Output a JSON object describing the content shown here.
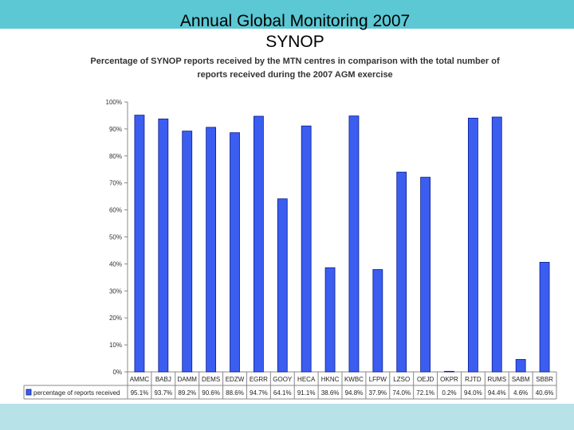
{
  "slide": {
    "title_line1": "Annual Global Monitoring 2007",
    "title_line2": "SYNOP"
  },
  "colors": {
    "header_band": "#5bc8d4",
    "footer_band": "#b7e3e8",
    "bar_fill": "#3b5ef0",
    "bar_stroke": "#0a1a8c"
  },
  "chart_data": {
    "type": "bar",
    "title": "Percentage of SYNOP reports received by the MTN centres in comparison with the total number of reports received during the 2007 AGM exercise",
    "title_lines": [
      "Percentage of SYNOP reports received by the MTN centres in comparison with the total number of",
      "reports received during the 2007 AGM exercise"
    ],
    "categories": [
      "AMMC",
      "BABJ",
      "DAMM",
      "DEMS",
      "EDZW",
      "EGRR",
      "GOOY",
      "HECA",
      "HKNC",
      "KWBC",
      "LFPW",
      "LZSO",
      "OEJD",
      "OKPR",
      "RJTD",
      "RUMS",
      "SABM",
      "SBBR"
    ],
    "series": [
      {
        "name": "percentage of reports received",
        "values": [
          95.1,
          93.7,
          89.2,
          90.6,
          88.6,
          94.7,
          64.1,
          91.1,
          38.6,
          94.8,
          37.9,
          74.0,
          72.1,
          0.2,
          94.0,
          94.4,
          4.6,
          40.6
        ],
        "labels": [
          "95.1%",
          "93.7%",
          "89.2%",
          "90.6%",
          "88.6%",
          "94.7%",
          "64.1%",
          "91.1%",
          "38.6%",
          "94.8%",
          "37.9%",
          "74.0%",
          "72.1%",
          "0.2%",
          "94.0%",
          "94.4%",
          "4.6%",
          "40.6%"
        ]
      }
    ],
    "ylim": [
      0,
      100
    ],
    "yticks": [
      "0%",
      "10%",
      "20%",
      "30%",
      "40%",
      "50%",
      "60%",
      "70%",
      "80%",
      "90%",
      "100%"
    ],
    "grid": false,
    "legend": "data-table-left",
    "xlabel": "",
    "ylabel": ""
  }
}
